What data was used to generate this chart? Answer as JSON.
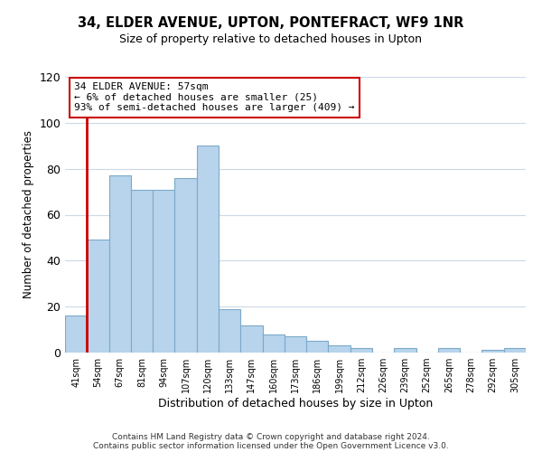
{
  "title": "34, ELDER AVENUE, UPTON, PONTEFRACT, WF9 1NR",
  "subtitle": "Size of property relative to detached houses in Upton",
  "xlabel": "Distribution of detached houses by size in Upton",
  "ylabel": "Number of detached properties",
  "bar_labels": [
    "41sqm",
    "54sqm",
    "67sqm",
    "81sqm",
    "94sqm",
    "107sqm",
    "120sqm",
    "133sqm",
    "147sqm",
    "160sqm",
    "173sqm",
    "186sqm",
    "199sqm",
    "212sqm",
    "226sqm",
    "239sqm",
    "252sqm",
    "265sqm",
    "278sqm",
    "292sqm",
    "305sqm"
  ],
  "bar_heights": [
    16,
    49,
    77,
    71,
    71,
    76,
    90,
    19,
    12,
    8,
    7,
    5,
    3,
    2,
    0,
    2,
    0,
    2,
    0,
    1,
    2
  ],
  "bar_color": "#b8d4ec",
  "bar_edge_color": "#7aaac8",
  "highlight_bar_index": 1,
  "highlight_color": "#cc0000",
  "ylim": [
    0,
    120
  ],
  "yticks": [
    0,
    20,
    40,
    60,
    80,
    100,
    120
  ],
  "annotation_title": "34 ELDER AVENUE: 57sqm",
  "annotation_line1": "← 6% of detached houses are smaller (25)",
  "annotation_line2": "93% of semi-detached houses are larger (409) →",
  "annotation_box_color": "#ffffff",
  "annotation_box_edge": "#cc0000",
  "footer_line1": "Contains HM Land Registry data © Crown copyright and database right 2024.",
  "footer_line2": "Contains public sector information licensed under the Open Government Licence v3.0.",
  "background_color": "#ffffff",
  "grid_color": "#ccd8e8"
}
